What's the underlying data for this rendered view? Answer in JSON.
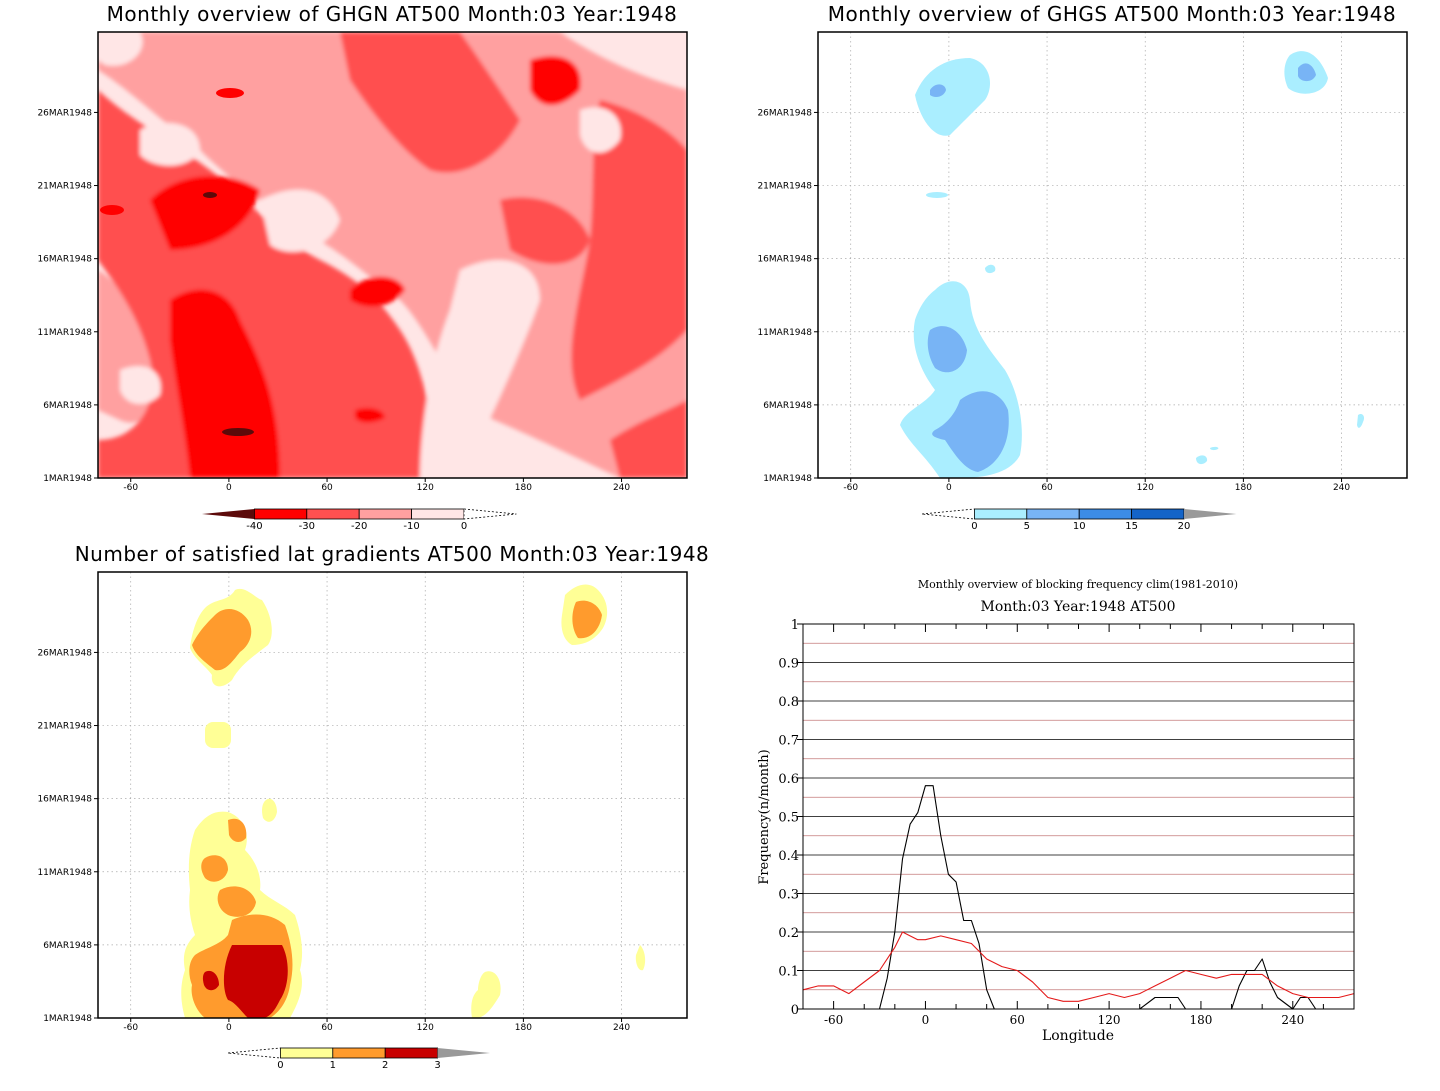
{
  "chart_data": [
    {
      "type": "heatmap",
      "title": "Monthly overview of GHGN AT500 Month:03 Year:1948",
      "x_ticks": [
        -60,
        0,
        60,
        120,
        180,
        240
      ],
      "y_ticks": [
        "1MAR1948",
        "6MAR1948",
        "11MAR1948",
        "16MAR1948",
        "21MAR1948",
        "26MAR1948"
      ],
      "xlim": [
        -80,
        280
      ],
      "colorbar": {
        "labels": [
          "-40",
          "-30",
          "-20",
          "-10",
          "0"
        ],
        "colors": [
          "#5c0a0a",
          "#ff0000",
          "#ff5050",
          "#ffa0a0",
          "#ffe6e6",
          "#ffffff"
        ]
      }
    },
    {
      "type": "heatmap",
      "title": "Monthly overview of GHGS AT500 Month:03 Year:1948",
      "x_ticks": [
        -60,
        0,
        60,
        120,
        180,
        240
      ],
      "y_ticks": [
        "1MAR1948",
        "6MAR1948",
        "11MAR1948",
        "16MAR1948",
        "21MAR1948",
        "26MAR1948"
      ],
      "xlim": [
        -80,
        280
      ],
      "colorbar": {
        "labels": [
          "0",
          "5",
          "10",
          "15",
          "20"
        ],
        "colors": [
          "#ffffff",
          "#aaeeff",
          "#78b4f5",
          "#3c8ce6",
          "#1464c8",
          "#999999"
        ]
      }
    },
    {
      "type": "heatmap",
      "title": "Number of satisfied lat gradients AT500 Month:03 Year:1948",
      "x_ticks": [
        -60,
        0,
        60,
        120,
        180,
        240
      ],
      "y_ticks": [
        "1MAR1948",
        "6MAR1948",
        "11MAR1948",
        "16MAR1948",
        "21MAR1948",
        "26MAR1948"
      ],
      "xlim": [
        -80,
        280
      ],
      "colorbar": {
        "labels": [
          "0",
          "1",
          "2",
          "3"
        ],
        "colors": [
          "#ffffff",
          "#ffff96",
          "#ff9b2d",
          "#c80000",
          "#999999"
        ]
      }
    },
    {
      "type": "line",
      "title": "Monthly overview of blocking frequency clim(1981-2010)",
      "subtitle": "Month:03 Year:1948  AT500",
      "xlabel": "Longitude",
      "ylabel": "Frequency(n/month)",
      "xlim": [
        -80,
        280
      ],
      "ylim": [
        0,
        1
      ],
      "x_ticks": [
        -60,
        0,
        60,
        120,
        180,
        240
      ],
      "y_ticks": [
        "0",
        "0.1",
        "0.2",
        "0.3",
        "0.4",
        "0.5",
        "0.6",
        "0.7",
        "0.8",
        "0.9",
        "1"
      ],
      "grid": true,
      "series": [
        {
          "color": "#000000",
          "x": [
            -80,
            -30,
            -25,
            -20,
            -15,
            -10,
            -5,
            0,
            5,
            10,
            15,
            20,
            25,
            30,
            35,
            40,
            45,
            50,
            60,
            80,
            140,
            150,
            160,
            165,
            170,
            180,
            200,
            205,
            210,
            215,
            220,
            225,
            230,
            240,
            245,
            250,
            255,
            260,
            280
          ],
          "y": [
            0,
            0,
            0.08,
            0.2,
            0.39,
            0.48,
            0.51,
            0.58,
            0.58,
            0.45,
            0.35,
            0.33,
            0.23,
            0.23,
            0.17,
            0.05,
            0,
            0,
            0,
            0,
            0,
            0.03,
            0.03,
            0.03,
            0,
            0,
            0,
            0.06,
            0.1,
            0.1,
            0.13,
            0.07,
            0.03,
            0,
            0.03,
            0.03,
            0,
            0,
            0
          ]
        },
        {
          "color": "#e41a1a",
          "x": [
            -80,
            -70,
            -60,
            -50,
            -40,
            -30,
            -20,
            -15,
            -10,
            -5,
            0,
            10,
            20,
            30,
            40,
            50,
            60,
            70,
            80,
            90,
            100,
            110,
            120,
            130,
            140,
            150,
            160,
            170,
            180,
            190,
            200,
            210,
            220,
            230,
            240,
            250,
            260,
            270,
            280
          ],
          "y": [
            0.05,
            0.06,
            0.06,
            0.04,
            0.07,
            0.1,
            0.16,
            0.2,
            0.19,
            0.18,
            0.18,
            0.19,
            0.18,
            0.17,
            0.13,
            0.11,
            0.1,
            0.07,
            0.03,
            0.02,
            0.02,
            0.03,
            0.04,
            0.03,
            0.04,
            0.06,
            0.08,
            0.1,
            0.09,
            0.08,
            0.09,
            0.09,
            0.09,
            0.06,
            0.04,
            0.03,
            0.03,
            0.03,
            0.04
          ]
        }
      ]
    }
  ]
}
